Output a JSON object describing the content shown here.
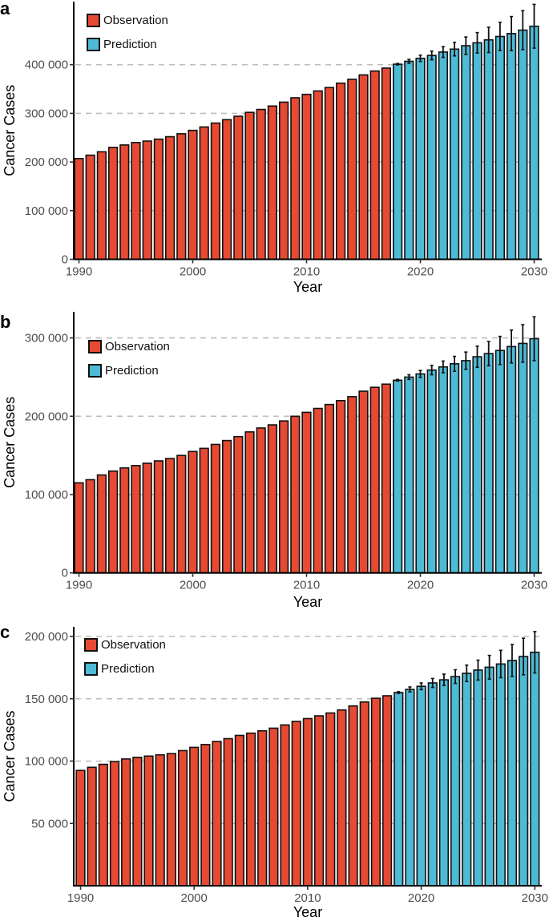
{
  "colors": {
    "observation": "#E64A33",
    "prediction": "#4DBBD5",
    "outline": "#111111",
    "grid": "#BDBDBD",
    "tick_text": "#4D4D4D"
  },
  "chart_data": [
    {
      "panel": "a",
      "type": "bar",
      "title": "",
      "xlabel": "Year",
      "ylabel": "Cancer Cases",
      "ylim": [
        0,
        500000
      ],
      "yticks": [
        0,
        100000,
        200000,
        300000,
        400000
      ],
      "ytick_labels": [
        "0",
        "100 000",
        "200 000",
        "300 000",
        "400 000"
      ],
      "xticks": [
        1990,
        2000,
        2010,
        2020,
        2030
      ],
      "xtick_labels": [
        "1990",
        "2000",
        "2010",
        "2020",
        "2030"
      ],
      "grid": "horizontal dashed",
      "legend": {
        "position": "top-left",
        "entries": [
          "Observation",
          "Prediction"
        ]
      },
      "series": [
        {
          "name": "Observation",
          "x": [
            1990,
            1991,
            1992,
            1993,
            1994,
            1995,
            1996,
            1997,
            1998,
            1999,
            2000,
            2001,
            2002,
            2003,
            2004,
            2005,
            2006,
            2007,
            2008,
            2009,
            2010,
            2011,
            2012,
            2013,
            2014,
            2015,
            2016,
            2017
          ],
          "values": [
            207000,
            214000,
            221000,
            230000,
            235000,
            240000,
            243000,
            247000,
            252000,
            258000,
            265000,
            272000,
            280000,
            287000,
            294000,
            302000,
            308000,
            315000,
            323000,
            332000,
            339000,
            346000,
            353000,
            362000,
            370000,
            379000,
            387000,
            393000
          ]
        },
        {
          "name": "Prediction",
          "x": [
            2018,
            2019,
            2020,
            2021,
            2022,
            2023,
            2024,
            2025,
            2026,
            2027,
            2028,
            2029,
            2030
          ],
          "values": [
            401000,
            407000,
            413000,
            419000,
            426000,
            432000,
            439000,
            445000,
            451000,
            458000,
            464000,
            471000,
            479000
          ],
          "error": [
            1500,
            4000,
            6500,
            9000,
            11000,
            14000,
            18000,
            21000,
            26000,
            29000,
            35000,
            40000,
            45000
          ]
        }
      ]
    },
    {
      "panel": "b",
      "type": "bar",
      "title": "",
      "xlabel": "Year",
      "ylabel": "Cancer Cases",
      "ylim": [
        0,
        333000
      ],
      "yticks": [
        0,
        100000,
        200000,
        300000
      ],
      "ytick_labels": [
        "0",
        "100 000",
        "200 000",
        "300 000"
      ],
      "xticks": [
        1990,
        2000,
        2010,
        2020,
        2030
      ],
      "xtick_labels": [
        "1990",
        "2000",
        "2010",
        "2020",
        "2030"
      ],
      "grid": "horizontal dashed",
      "legend": {
        "position": "top-left",
        "entries": [
          "Observation",
          "Prediction"
        ]
      },
      "series": [
        {
          "name": "Observation",
          "x": [
            1990,
            1991,
            1992,
            1993,
            1994,
            1995,
            1996,
            1997,
            1998,
            1999,
            2000,
            2001,
            2002,
            2003,
            2004,
            2005,
            2006,
            2007,
            2008,
            2009,
            2010,
            2011,
            2012,
            2013,
            2014,
            2015,
            2016,
            2017
          ],
          "values": [
            115000,
            119000,
            125000,
            130000,
            134000,
            137000,
            140000,
            143000,
            146000,
            150000,
            155000,
            159000,
            164000,
            169000,
            174000,
            180000,
            185000,
            189000,
            194000,
            200000,
            205000,
            210000,
            215000,
            220000,
            225000,
            232000,
            237000,
            241000
          ]
        },
        {
          "name": "Prediction",
          "x": [
            2018,
            2019,
            2020,
            2021,
            2022,
            2023,
            2024,
            2025,
            2026,
            2027,
            2028,
            2029,
            2030
          ],
          "values": [
            246000,
            250000,
            254000,
            259000,
            263000,
            267000,
            271000,
            276000,
            280000,
            284000,
            289000,
            293000,
            299000
          ],
          "error": [
            1000,
            3000,
            4500,
            6000,
            7500,
            9500,
            11000,
            13500,
            15500,
            18000,
            21000,
            24000,
            28000
          ]
        }
      ]
    },
    {
      "panel": "c",
      "type": "bar",
      "title": "",
      "xlabel": "Year",
      "ylabel": "Cancer Cases",
      "ylim": [
        0,
        208500
      ],
      "yticks": [
        50000,
        100000,
        150000,
        200000
      ],
      "ytick_labels": [
        "50 000",
        "100 000",
        "150 000",
        "200 000"
      ],
      "xticks": [
        1990,
        2000,
        2010,
        2020,
        2030
      ],
      "xtick_labels": [
        "1990",
        "2000",
        "2010",
        "2020",
        "2030"
      ],
      "grid": "horizontal dashed",
      "legend": {
        "position": "top-left",
        "entries": [
          "Observation",
          "Prediction"
        ]
      },
      "series": [
        {
          "name": "Observation",
          "x": [
            1990,
            1991,
            1992,
            1993,
            1994,
            1995,
            1996,
            1997,
            1998,
            1999,
            2000,
            2001,
            2002,
            2003,
            2004,
            2005,
            2006,
            2007,
            2008,
            2009,
            2010,
            2011,
            2012,
            2013,
            2014,
            2015,
            2016,
            2017
          ],
          "values": [
            92500,
            95000,
            97400,
            99600,
            101700,
            103000,
            104000,
            105000,
            106000,
            108400,
            111000,
            113300,
            115700,
            118000,
            120600,
            122400,
            124300,
            126400,
            129000,
            131800,
            134100,
            136300,
            138600,
            141000,
            144200,
            147400,
            150400,
            152400
          ]
        },
        {
          "name": "Prediction",
          "x": [
            2018,
            2019,
            2020,
            2021,
            2022,
            2023,
            2024,
            2025,
            2026,
            2027,
            2028,
            2029,
            2030
          ],
          "values": [
            155000,
            157500,
            160000,
            162700,
            165200,
            167800,
            170400,
            173000,
            175300,
            177900,
            180700,
            183900,
            187300
          ],
          "error": [
            700,
            2000,
            2700,
            3600,
            4600,
            5500,
            6600,
            8000,
            9500,
            11000,
            12800,
            14700,
            16600
          ]
        }
      ]
    }
  ]
}
